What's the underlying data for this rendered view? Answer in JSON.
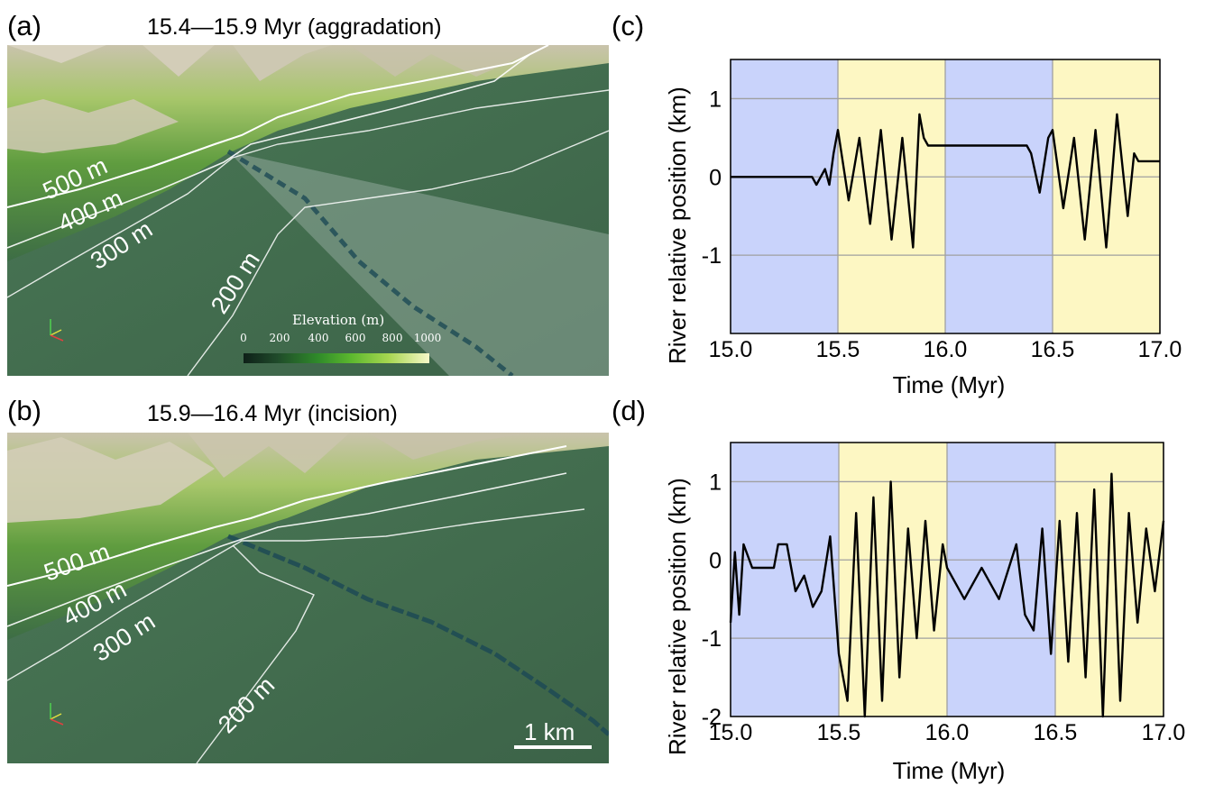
{
  "panels": {
    "a": {
      "letter": "(a)",
      "title": "15.4—15.9 Myr (aggradation)"
    },
    "b": {
      "letter": "(b)",
      "title": "15.9—16.4 Myr (incision)"
    },
    "c": {
      "letter": "(c)"
    },
    "d": {
      "letter": "(d)"
    }
  },
  "contours": {
    "c500": "500 m",
    "c400": "400 m",
    "c300": "300 m",
    "c200": "200 m"
  },
  "colorbar": {
    "title": "Elevation (m)",
    "ticks": [
      "0",
      "200",
      "400",
      "600",
      "800",
      "1000"
    ],
    "colors": [
      "#0e2018",
      "#2f8a2a",
      "#a7d650",
      "#f6f8c8"
    ]
  },
  "scalebar": {
    "label": "1 km"
  },
  "chart_data": [
    {
      "type": "line",
      "panel": "c",
      "xlabel": "Time (Myr)",
      "ylabel": "River relative position (km)",
      "xlim": [
        15.0,
        17.0
      ],
      "ylim": [
        -2.0,
        1.5
      ],
      "xticks": [
        "15.0",
        "15.5",
        "16.0",
        "16.5",
        "17.0"
      ],
      "yticks": [
        "1",
        "0",
        "-1"
      ],
      "grid": true,
      "shaded_intervals": [
        {
          "x": [
            15.0,
            15.5
          ],
          "color": "#c9d3fb"
        },
        {
          "x": [
            15.5,
            16.0
          ],
          "color": "#fdf7c3"
        },
        {
          "x": [
            16.0,
            16.5
          ],
          "color": "#c9d3fb"
        },
        {
          "x": [
            16.5,
            17.0
          ],
          "color": "#fdf7c3"
        }
      ],
      "series_color": "#000000",
      "x": [
        15.0,
        15.38,
        15.4,
        15.44,
        15.46,
        15.48,
        15.5,
        15.55,
        15.6,
        15.65,
        15.7,
        15.75,
        15.8,
        15.85,
        15.88,
        15.9,
        15.92,
        16.0,
        16.2,
        16.38,
        16.4,
        16.44,
        16.48,
        16.5,
        16.55,
        16.6,
        16.65,
        16.7,
        16.75,
        16.8,
        16.85,
        16.88,
        16.9,
        17.0
      ],
      "y": [
        0.0,
        0.0,
        -0.1,
        0.1,
        -0.1,
        0.3,
        0.6,
        -0.3,
        0.5,
        -0.6,
        0.6,
        -0.8,
        0.5,
        -0.9,
        0.8,
        0.5,
        0.4,
        0.4,
        0.4,
        0.4,
        0.3,
        -0.2,
        0.5,
        0.6,
        -0.4,
        0.5,
        -0.8,
        0.6,
        -0.9,
        0.8,
        -0.5,
        0.3,
        0.2,
        0.2
      ]
    },
    {
      "type": "line",
      "panel": "d",
      "xlabel": "Time (Myr)",
      "ylabel": "River relative position (km)",
      "xlim": [
        15.0,
        17.0
      ],
      "ylim": [
        -2.0,
        1.5
      ],
      "xticks": [
        "15.0",
        "15.5",
        "16.0",
        "16.5",
        "17.0"
      ],
      "yticks": [
        "1",
        "0",
        "-1",
        "-2"
      ],
      "grid": true,
      "shaded_intervals": [
        {
          "x": [
            15.0,
            15.5
          ],
          "color": "#c9d3fb"
        },
        {
          "x": [
            15.5,
            16.0
          ],
          "color": "#fdf7c3"
        },
        {
          "x": [
            16.0,
            16.5
          ],
          "color": "#c9d3fb"
        },
        {
          "x": [
            16.5,
            17.0
          ],
          "color": "#fdf7c3"
        }
      ],
      "series_color": "#000000",
      "x": [
        15.0,
        15.02,
        15.04,
        15.06,
        15.1,
        15.2,
        15.22,
        15.26,
        15.28,
        15.3,
        15.34,
        15.38,
        15.42,
        15.46,
        15.5,
        15.54,
        15.58,
        15.62,
        15.66,
        15.7,
        15.74,
        15.78,
        15.82,
        15.86,
        15.9,
        15.94,
        15.98,
        16.0,
        16.08,
        16.16,
        16.24,
        16.32,
        16.36,
        16.4,
        16.44,
        16.48,
        16.52,
        16.56,
        16.6,
        16.64,
        16.68,
        16.72,
        16.76,
        16.8,
        16.84,
        16.88,
        16.92,
        16.96,
        17.0
      ],
      "y": [
        -0.8,
        0.1,
        -0.7,
        0.2,
        -0.1,
        -0.1,
        0.2,
        0.2,
        -0.1,
        -0.4,
        -0.2,
        -0.6,
        -0.4,
        0.3,
        -1.2,
        -1.8,
        0.6,
        -2.0,
        0.8,
        -1.8,
        1.0,
        -1.5,
        0.4,
        -1.0,
        0.5,
        -0.9,
        0.2,
        -0.1,
        -0.5,
        -0.1,
        -0.5,
        0.2,
        -0.7,
        -0.9,
        0.4,
        -1.2,
        0.5,
        -1.3,
        0.6,
        -1.5,
        0.9,
        -2.0,
        1.1,
        -1.8,
        0.6,
        -0.8,
        0.4,
        -0.4,
        0.5
      ]
    }
  ]
}
